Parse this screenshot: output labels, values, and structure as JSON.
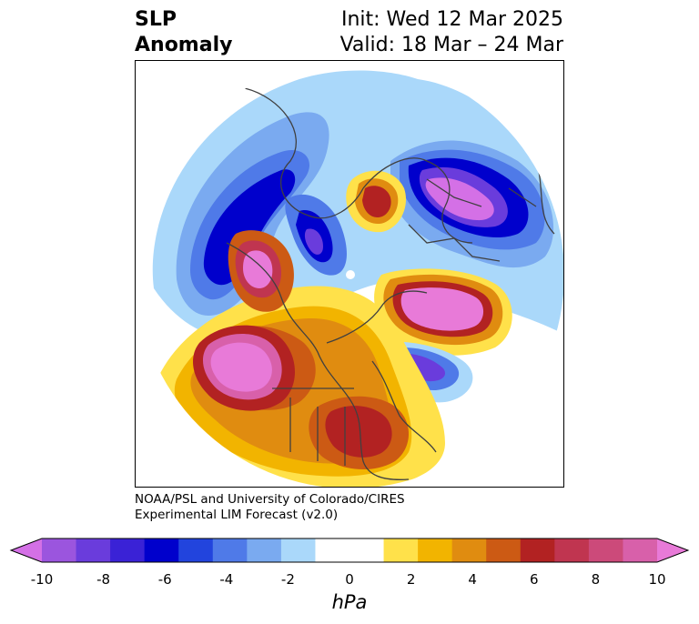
{
  "header": {
    "title_line1": "SLP",
    "title_line2": "Anomaly",
    "init": "Init: Wed 12 Mar 2025",
    "valid": "Valid: 18 Mar – 24 Mar"
  },
  "credit": {
    "line1": "NOAA/PSL and University of Colorado/CIRES",
    "line2": "Experimental LIM Forecast (v2.0)"
  },
  "colorbar": {
    "unit": "hPa",
    "ticks": [
      "-10",
      "-8",
      "-6",
      "-4",
      "-2",
      "0",
      "2",
      "4",
      "6",
      "8",
      "10"
    ],
    "colors": [
      "#d470e6",
      "#9b55de",
      "#6a3cdc",
      "#3a22d6",
      "#0000cc",
      "#2244dd",
      "#4f7ae8",
      "#7aaaf0",
      "#aad8fa",
      "#ffffff",
      "#ffffff",
      "#ffe14a",
      "#f2b400",
      "#e08c10",
      "#cc5a14",
      "#b22222",
      "#c03550",
      "#cc4a7a",
      "#d860aa",
      "#e87ad8"
    ]
  }
}
